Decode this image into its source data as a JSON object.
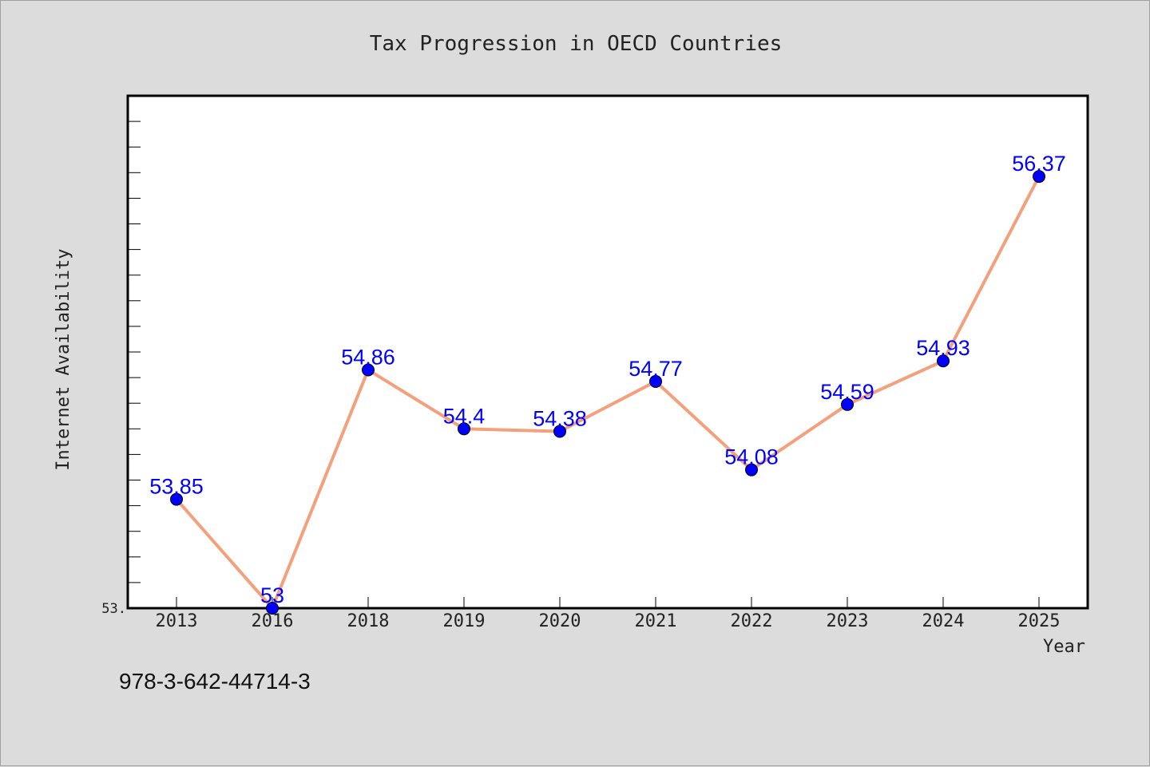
{
  "chart_data": {
    "type": "line",
    "title": "Tax Progression in OECD Countries",
    "xlabel": "Year",
    "ylabel": "Internet Availability",
    "categories": [
      "2013",
      "2016",
      "2018",
      "2019",
      "2020",
      "2021",
      "2022",
      "2023",
      "2024",
      "2025"
    ],
    "series": [
      {
        "values": [
          53.85,
          53.0,
          54.86,
          54.4,
          54.38,
          54.77,
          54.08,
          54.59,
          54.93,
          56.37
        ],
        "labels": [
          "53.85",
          "53",
          "54.86",
          "54.4",
          "54.38",
          "54.77",
          "54.08",
          "54.59",
          "54.93",
          "56.37"
        ],
        "line_color": "#f4a07c",
        "marker_color": "#0000ff"
      }
    ],
    "ylim": [
      53.0,
      57.0
    ],
    "y_tick_label": "53.",
    "grid": false,
    "legend": "none"
  },
  "footer": {
    "isbn": "978-3-642-44714-3"
  }
}
